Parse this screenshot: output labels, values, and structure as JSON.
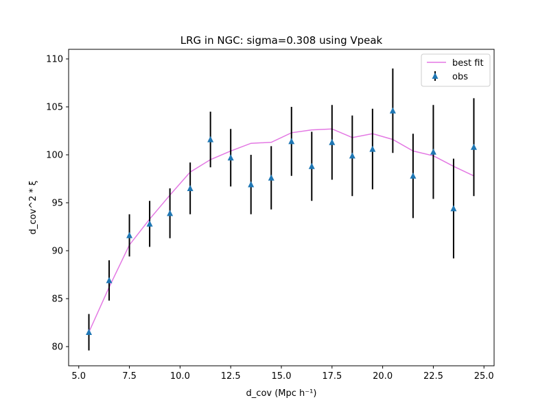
{
  "chart_data": {
    "type": "scatter",
    "title": "LRG in NGC: sigma=0.308 using Vpeak",
    "xlabel": "d_cov (Mpc h⁻¹)",
    "ylabel": "d_cov^2 * ξ",
    "xlim": [
      4.5,
      25.5
    ],
    "ylim": [
      78.0,
      111.0
    ],
    "xticks": [
      "5.0",
      "7.5",
      "10.0",
      "12.5",
      "15.0",
      "17.5",
      "20.0",
      "22.5",
      "25.0"
    ],
    "yticks": [
      "80",
      "85",
      "90",
      "95",
      "100",
      "105",
      "110"
    ],
    "grid": false,
    "legend_position": "top-right",
    "colors": {
      "best_fit": "#e377e3",
      "obs": "#1f77b4",
      "errorbar": "#000000"
    },
    "series": [
      {
        "name": "best fit",
        "kind": "line",
        "x": [
          5.5,
          6.5,
          7.5,
          8.5,
          9.5,
          10.5,
          11.5,
          12.5,
          13.5,
          14.5,
          15.5,
          16.5,
          17.5,
          18.5,
          19.5,
          20.5,
          21.5,
          22.5,
          23.5,
          24.5
        ],
        "y": [
          81.5,
          86.2,
          90.6,
          93.3,
          95.8,
          98.2,
          99.5,
          100.4,
          101.2,
          101.3,
          102.3,
          102.6,
          102.7,
          101.8,
          102.2,
          101.6,
          100.4,
          99.9,
          98.8,
          97.8
        ]
      },
      {
        "name": "obs",
        "kind": "errorbar",
        "x": [
          5.5,
          6.5,
          7.5,
          8.5,
          9.5,
          10.5,
          11.5,
          12.5,
          13.5,
          14.5,
          15.5,
          16.5,
          17.5,
          18.5,
          19.5,
          20.5,
          21.5,
          22.5,
          23.5,
          24.5
        ],
        "y": [
          81.5,
          86.9,
          91.6,
          92.8,
          93.9,
          96.5,
          101.6,
          99.7,
          96.9,
          97.6,
          101.4,
          98.8,
          101.3,
          99.9,
          100.6,
          104.6,
          97.8,
          100.3,
          94.4,
          100.8
        ],
        "yerr": [
          1.9,
          2.1,
          2.2,
          2.4,
          2.6,
          2.7,
          2.9,
          3.0,
          3.1,
          3.3,
          3.6,
          3.6,
          3.9,
          4.2,
          4.2,
          4.4,
          4.4,
          4.9,
          5.2,
          5.1
        ]
      }
    ]
  }
}
